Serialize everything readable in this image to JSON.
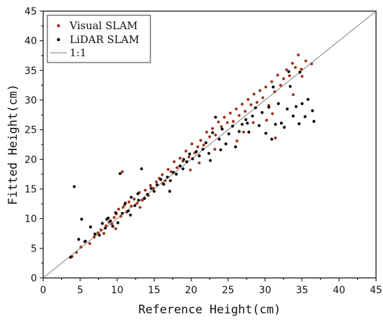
{
  "chart_data": {
    "type": "scatter",
    "title": "",
    "xlabel": "Reference Height(cm)",
    "ylabel": "Fitted Height(cm)",
    "xlim": [
      0,
      45
    ],
    "ylim": [
      0,
      45
    ],
    "x_ticks": [
      0,
      5,
      10,
      15,
      20,
      25,
      30,
      35,
      40,
      45
    ],
    "y_ticks": [
      0,
      5,
      10,
      15,
      20,
      25,
      30,
      35,
      40,
      45
    ],
    "grid": false,
    "legend_position": "top-left",
    "reference_line": {
      "name": "1:1",
      "points": [
        [
          0,
          0
        ],
        [
          45,
          45
        ]
      ],
      "color": "#808080"
    },
    "series": [
      {
        "name": "Visual SLAM",
        "color": "#a0361c",
        "points": [
          [
            3.9,
            3.6
          ],
          [
            4.5,
            4.3
          ],
          [
            5.1,
            5.2
          ],
          [
            5.6,
            6.1
          ],
          [
            6.3,
            5.8
          ],
          [
            6.9,
            6.9
          ],
          [
            7.4,
            7.6
          ],
          [
            7.8,
            8.1
          ],
          [
            8.2,
            7.5
          ],
          [
            8.5,
            8.8
          ],
          [
            8.9,
            9.4
          ],
          [
            9.3,
            9.1
          ],
          [
            9.6,
            10.2
          ],
          [
            9.9,
            10.8
          ],
          [
            10.2,
            11.6
          ],
          [
            10.5,
            10.4
          ],
          [
            10.8,
            11.9
          ],
          [
            11.0,
            12.3
          ],
          [
            11.3,
            11.1
          ],
          [
            11.6,
            12.8
          ],
          [
            11.9,
            12.1
          ],
          [
            12.3,
            13.3
          ],
          [
            12.7,
            12.6
          ],
          [
            13.0,
            14.4
          ],
          [
            13.4,
            13.1
          ],
          [
            13.8,
            14.8
          ],
          [
            14.2,
            13.9
          ],
          [
            14.5,
            15.6
          ],
          [
            14.9,
            15.1
          ],
          [
            15.3,
            16.2
          ],
          [
            15.7,
            16.8
          ],
          [
            16.1,
            17.4
          ],
          [
            16.5,
            16.4
          ],
          [
            16.9,
            18.3
          ],
          [
            17.3,
            17.9
          ],
          [
            17.7,
            19.6
          ],
          [
            18.1,
            18.6
          ],
          [
            18.5,
            20.2
          ],
          [
            18.9,
            19.7
          ],
          [
            19.3,
            21.4
          ],
          [
            19.7,
            20.4
          ],
          [
            20.1,
            22.6
          ],
          [
            20.5,
            21.1
          ],
          [
            20.9,
            22.1
          ],
          [
            21.3,
            23.2
          ],
          [
            21.7,
            22.4
          ],
          [
            22.1,
            24.6
          ],
          [
            22.5,
            23.8
          ],
          [
            22.9,
            25.2
          ],
          [
            23.3,
            24.1
          ],
          [
            23.7,
            26.3
          ],
          [
            24.1,
            25.5
          ],
          [
            24.5,
            27.1
          ],
          [
            24.9,
            26.2
          ],
          [
            25.3,
            27.8
          ],
          [
            25.7,
            26.4
          ],
          [
            26.1,
            28.5
          ],
          [
            26.5,
            27.4
          ],
          [
            26.9,
            29.3
          ],
          [
            27.3,
            28.1
          ],
          [
            27.7,
            30.1
          ],
          [
            28.1,
            29.2
          ],
          [
            28.5,
            31.0
          ],
          [
            28.9,
            29.6
          ],
          [
            29.3,
            31.6
          ],
          [
            29.7,
            30.4
          ],
          [
            30.1,
            32.2
          ],
          [
            30.5,
            29.1
          ],
          [
            30.9,
            33.1
          ],
          [
            31.3,
            31.4
          ],
          [
            31.7,
            34.2
          ],
          [
            32.1,
            32.5
          ],
          [
            32.5,
            33.6
          ],
          [
            32.9,
            35.1
          ],
          [
            33.3,
            34.1
          ],
          [
            33.7,
            36.2
          ],
          [
            34.1,
            35.5
          ],
          [
            34.5,
            37.6
          ],
          [
            34.9,
            35.2
          ],
          [
            35.5,
            36.6
          ],
          [
            36.3,
            36.1
          ],
          [
            26.2,
            23.1
          ],
          [
            28.4,
            26.2
          ],
          [
            30.2,
            26.6
          ],
          [
            31.0,
            27.7
          ],
          [
            13.1,
            11.9
          ],
          [
            10.7,
            17.9
          ],
          [
            27.1,
            24.6
          ],
          [
            21.1,
            19.4
          ],
          [
            16.2,
            15.9
          ],
          [
            9.8,
            8.3
          ],
          [
            33.8,
            30.9
          ],
          [
            31.4,
            23.6
          ],
          [
            19.9,
            18.2
          ],
          [
            35.0,
            34.0
          ],
          [
            23.2,
            21.7
          ]
        ]
      },
      {
        "name": "LiDAR SLAM",
        "color": "#000000",
        "points": [
          [
            3.7,
            3.5
          ],
          [
            4.2,
            15.4
          ],
          [
            4.8,
            6.5
          ],
          [
            5.2,
            9.9
          ],
          [
            5.7,
            6.2
          ],
          [
            6.4,
            8.6
          ],
          [
            7.0,
            7.4
          ],
          [
            7.6,
            7.2
          ],
          [
            8.0,
            9.2
          ],
          [
            8.4,
            8.4
          ],
          [
            8.8,
            10.1
          ],
          [
            9.1,
            9.6
          ],
          [
            9.4,
            8.7
          ],
          [
            9.8,
            11.0
          ],
          [
            10.1,
            9.3
          ],
          [
            10.4,
            17.6
          ],
          [
            10.7,
            10.9
          ],
          [
            11.1,
            12.6
          ],
          [
            11.5,
            11.3
          ],
          [
            11.9,
            13.6
          ],
          [
            12.4,
            12.2
          ],
          [
            12.8,
            14.2
          ],
          [
            13.3,
            18.4
          ],
          [
            13.7,
            13.4
          ],
          [
            14.1,
            14.1
          ],
          [
            14.6,
            15.1
          ],
          [
            15.0,
            14.6
          ],
          [
            15.4,
            15.7
          ],
          [
            15.9,
            16.6
          ],
          [
            16.3,
            15.8
          ],
          [
            16.8,
            17.0
          ],
          [
            17.2,
            16.4
          ],
          [
            17.6,
            17.8
          ],
          [
            18.0,
            17.5
          ],
          [
            18.5,
            18.9
          ],
          [
            18.9,
            18.4
          ],
          [
            19.4,
            19.6
          ],
          [
            19.8,
            20.9
          ],
          [
            20.2,
            20.1
          ],
          [
            20.7,
            21.3
          ],
          [
            21.1,
            20.6
          ],
          [
            21.6,
            21.7
          ],
          [
            22.0,
            22.8
          ],
          [
            22.4,
            21.0
          ],
          [
            22.9,
            24.5
          ],
          [
            23.3,
            27.1
          ],
          [
            23.8,
            23.4
          ],
          [
            24.2,
            25.1
          ],
          [
            24.7,
            22.6
          ],
          [
            25.1,
            24.3
          ],
          [
            25.6,
            25.6
          ],
          [
            26.0,
            22.1
          ],
          [
            26.5,
            24.7
          ],
          [
            26.9,
            25.9
          ],
          [
            27.4,
            26.7
          ],
          [
            27.8,
            24.6
          ],
          [
            28.3,
            27.3
          ],
          [
            28.7,
            28.7
          ],
          [
            29.2,
            25.7
          ],
          [
            29.6,
            27.9
          ],
          [
            30.1,
            24.4
          ],
          [
            30.5,
            28.8
          ],
          [
            30.9,
            23.4
          ],
          [
            31.4,
            25.9
          ],
          [
            31.8,
            29.4
          ],
          [
            32.2,
            26.1
          ],
          [
            32.6,
            25.4
          ],
          [
            33.0,
            28.5
          ],
          [
            33.4,
            32.3
          ],
          [
            33.8,
            27.3
          ],
          [
            34.2,
            28.9
          ],
          [
            34.6,
            26.0
          ],
          [
            35.0,
            29.4
          ],
          [
            35.4,
            27.2
          ],
          [
            35.8,
            30.1
          ],
          [
            36.4,
            28.2
          ],
          [
            36.6,
            26.4
          ],
          [
            34.7,
            34.7
          ],
          [
            33.2,
            34.8
          ],
          [
            31.1,
            32.2
          ],
          [
            19.0,
            20.0
          ],
          [
            17.1,
            14.6
          ],
          [
            11.8,
            10.6
          ],
          [
            8.6,
            9.9
          ],
          [
            12.9,
            13.1
          ],
          [
            24.0,
            21.6
          ],
          [
            27.6,
            26.1
          ],
          [
            22.6,
            19.8
          ]
        ]
      }
    ]
  }
}
